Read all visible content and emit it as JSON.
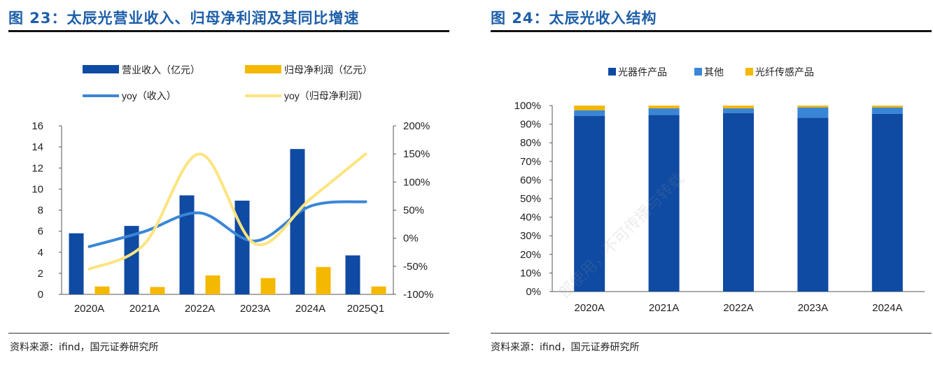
{
  "left": {
    "title": "图 23：太辰光营业收入、归母净利润及其同比增速",
    "source": "资料来源：ifind，国元证券研究所"
  },
  "right": {
    "title": "图 24：太辰光收入结构",
    "source": "资料来源：ifind，国元证券研究所"
  },
  "watermark": "部使用，不可传播与转载",
  "chart_data": [
    {
      "type": "bar",
      "categories": [
        "2020A",
        "2021A",
        "2022A",
        "2023A",
        "2024A",
        "2025Q1"
      ],
      "series": [
        {
          "name": "营业收入（亿元）",
          "kind": "bar",
          "axis": "left",
          "color": "#0f4aa3",
          "values": [
            5.8,
            6.5,
            9.4,
            8.9,
            13.8,
            3.7
          ]
        },
        {
          "name": "归母净利润（亿元）",
          "kind": "bar",
          "axis": "left",
          "color": "#f5b800",
          "values": [
            0.75,
            0.7,
            1.8,
            1.55,
            2.6,
            0.75
          ]
        },
        {
          "name": "yoy（收入）",
          "kind": "line",
          "axis": "right",
          "color": "#3a86d6",
          "values": [
            -15,
            12,
            45,
            -5,
            57,
            65
          ]
        },
        {
          "name": "yoy（归母净利润）",
          "kind": "line",
          "axis": "right",
          "color": "#fde47e",
          "values": [
            -55,
            -10,
            150,
            -10,
            70,
            150
          ]
        }
      ],
      "y_left": {
        "min": 0,
        "max": 16,
        "ticks": [
          0,
          2,
          4,
          6,
          8,
          10,
          12,
          14,
          16
        ]
      },
      "y_right": {
        "min": -100,
        "max": 200,
        "ticks": [
          "-100%",
          "-50%",
          "0%",
          "50%",
          "100%",
          "150%",
          "200%"
        ]
      },
      "legend_position": "top"
    },
    {
      "type": "bar",
      "stacked": true,
      "categories": [
        "2020A",
        "2021A",
        "2022A",
        "2023A",
        "2024A"
      ],
      "series": [
        {
          "name": "光器件产品",
          "color": "#0f4aa3",
          "values": [
            94.5,
            95,
            96,
            93.5,
            95.5
          ]
        },
        {
          "name": "其他",
          "color": "#3a86d6",
          "values": [
            3,
            3.5,
            2.5,
            5.5,
            3.5
          ]
        },
        {
          "name": "光纤传感产品",
          "color": "#f5b800",
          "values": [
            2.5,
            1.5,
            1.5,
            1,
            1
          ]
        }
      ],
      "y": {
        "min": 0,
        "max": 100,
        "ticks": [
          "0%",
          "10%",
          "20%",
          "30%",
          "40%",
          "50%",
          "60%",
          "70%",
          "80%",
          "90%",
          "100%"
        ]
      },
      "legend_position": "top"
    }
  ]
}
